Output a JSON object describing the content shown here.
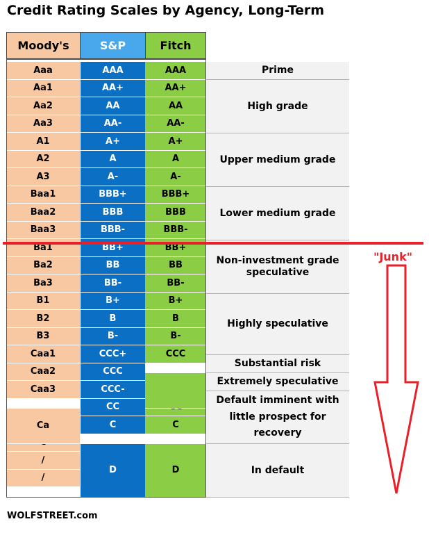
{
  "title": "Credit Rating Scales by Agency, Long-Term",
  "headers": {
    "moodys": "Moody's",
    "sp": "S&P",
    "fitch": "Fitch"
  },
  "rows": [
    {
      "moodys": "Aaa",
      "sp": "AAA",
      "fitch": "AAA"
    },
    {
      "moodys": "Aa1",
      "sp": "AA+",
      "fitch": "AA+"
    },
    {
      "moodys": "Aa2",
      "sp": "AA",
      "fitch": "AA"
    },
    {
      "moodys": "Aa3",
      "sp": "AA-",
      "fitch": "AA-"
    },
    {
      "moodys": "A1",
      "sp": "A+",
      "fitch": "A+"
    },
    {
      "moodys": "A2",
      "sp": "A",
      "fitch": "A"
    },
    {
      "moodys": "A3",
      "sp": "A-",
      "fitch": "A-"
    },
    {
      "moodys": "Baa1",
      "sp": "BBB+",
      "fitch": "BBB+"
    },
    {
      "moodys": "Baa2",
      "sp": "BBB",
      "fitch": "BBB"
    },
    {
      "moodys": "Baa3",
      "sp": "BBB-",
      "fitch": "BBB-"
    },
    {
      "moodys": "Ba1",
      "sp": "BB+",
      "fitch": "BB+"
    },
    {
      "moodys": "Ba2",
      "sp": "BB",
      "fitch": "BB"
    },
    {
      "moodys": "Ba3",
      "sp": "BB-",
      "fitch": "BB-"
    },
    {
      "moodys": "B1",
      "sp": "B+",
      "fitch": "B+"
    },
    {
      "moodys": "B2",
      "sp": "B",
      "fitch": "B"
    },
    {
      "moodys": "B3",
      "sp": "B-",
      "fitch": "B-"
    },
    {
      "moodys": "Caa1",
      "sp": "CCC+",
      "fitch": "CCC"
    },
    {
      "moodys": "Caa2",
      "sp": "CCC",
      "fitch": ""
    },
    {
      "moodys": "Caa3",
      "sp": "CCC-",
      "fitch": ""
    },
    {
      "moodys": "Ca",
      "sp": "CC",
      "fitch": "CC"
    },
    {
      "moodys": "",
      "sp": "C",
      "fitch": "C"
    },
    {
      "moodys": "C",
      "sp": "D",
      "fitch": "D"
    },
    {
      "moodys": "/",
      "sp": "",
      "fitch": ""
    },
    {
      "moodys": "/",
      "sp": "",
      "fitch": ""
    }
  ],
  "descriptions": {
    "prime": "Prime",
    "high_grade": "High grade",
    "upper_medium": "Upper medium grade",
    "lower_medium": "Lower medium grade",
    "non_investment": "Non-investment grade speculative",
    "highly_speculative": "Highly speculative",
    "substantial_risk": "Substantial risk",
    "extremely_speculative": "Extremely speculative",
    "default_imminent": "Default imminent with little prospect for recovery",
    "in_default": "In default"
  },
  "junk_label": "\"Junk\"",
  "footer": "WOLFSTREET.com",
  "colors": {
    "moodys": "#f7c8a1",
    "sp": "#0b6fc4",
    "sp_header": "#49a8ec",
    "fitch": "#8bcd45",
    "description": "#f2f2f2",
    "junk": "#e8202a"
  }
}
